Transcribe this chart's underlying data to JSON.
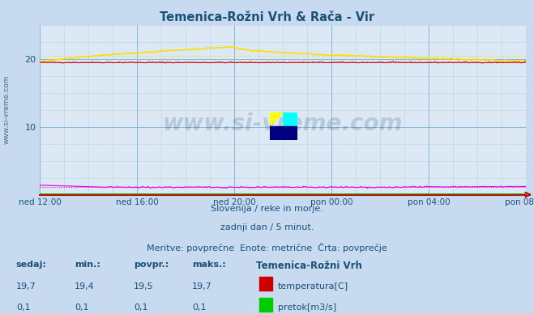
{
  "title": "Temenica-Rožni Vrh & Rača - Vir",
  "title_color": "#1a5276",
  "plot_bg_color": "#dce9f5",
  "fig_bg_color": "#c8daf0",
  "grid_major_color": "#7fb3d3",
  "grid_minor_color": "#b8d4e8",
  "x_tick_labels": [
    "ned 12:00",
    "ned 16:00",
    "ned 20:00",
    "pon 00:00",
    "pon 04:00",
    "pon 08:00"
  ],
  "x_ticks_pos": [
    0,
    48,
    96,
    144,
    192,
    240
  ],
  "n_points": 289,
  "ylim": [
    0,
    25
  ],
  "yticks": [
    10,
    20
  ],
  "ylabel_color": "#1a5276",
  "watermark_text": "www.si-vreme.com",
  "watermark_color": "#1a3a5c",
  "watermark_alpha": 0.18,
  "subtitle_lines": [
    "Slovenija / reke in morje.",
    "zadnji dan / 5 minut.",
    "Meritve: povprečne  Enote: metrične  Črta: povprečje"
  ],
  "subtitle_color": "#1a5276",
  "table_header_color": "#1a5276",
  "table_value_color": "#1a5276",
  "line_colors": {
    "temenica_temp": "#cc0000",
    "temenica_pretok": "#00aa00",
    "raca_temp": "#ffdd00",
    "raca_pretok": "#dd00dd"
  },
  "legend_colors": {
    "temenica_temp": "#cc0000",
    "temenica_pretok": "#00cc00",
    "raca_temp": "#ffdd00",
    "raca_pretok": "#cc00cc"
  },
  "temenica_temp_min": 19.4,
  "temenica_temp_max": 19.7,
  "temenica_temp_avg": 19.5,
  "temenica_temp_cur": 19.7,
  "temenica_pretok_min": 0.1,
  "temenica_pretok_max": 0.1,
  "temenica_pretok_avg": 0.1,
  "temenica_pretok_cur": 0.1,
  "raca_temp_min": 19.4,
  "raca_temp_max": 21.8,
  "raca_temp_avg": 20.5,
  "raca_temp_cur": 19.7,
  "raca_pretok_min": 1.0,
  "raca_pretok_max": 1.2,
  "raca_pretok_avg": 1.1,
  "raca_pretok_cur": 1.0
}
